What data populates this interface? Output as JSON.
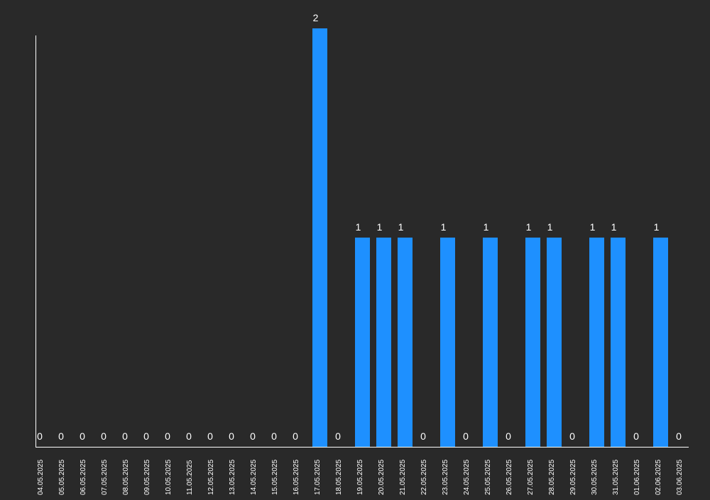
{
  "colors": {
    "background": "#292929",
    "bar": "#1e90ff",
    "axis": "#ffffff",
    "text": "#ffffff"
  },
  "chart_data": {
    "type": "bar",
    "categories": [
      "04.05.2025",
      "05.05.2025",
      "06.05.2025",
      "07.05.2025",
      "08.05.2025",
      "09.05.2025",
      "10.05.2025",
      "11.05.2025",
      "12.05.2025",
      "13.05.2025",
      "14.05.2025",
      "15.05.2025",
      "16.05.2025",
      "17.05.2025",
      "18.05.2025",
      "19.05.2025",
      "20.05.2025",
      "21.05.2025",
      "22.05.2025",
      "23.05.2025",
      "24.05.2025",
      "25.05.2025",
      "26.05.2025",
      "27.05.2025",
      "28.05.2025",
      "29.05.2025",
      "30.05.2025",
      "31.05.2025",
      "01.06.2025",
      "02.06.2025",
      "03.06.2025"
    ],
    "values": [
      0,
      0,
      0,
      0,
      0,
      0,
      0,
      0,
      0,
      0,
      0,
      0,
      0,
      2,
      0,
      1,
      1,
      1,
      0,
      1,
      0,
      1,
      0,
      1,
      1,
      0,
      1,
      1,
      0,
      1,
      0
    ],
    "ylim": [
      0,
      2
    ],
    "grid": false,
    "data_labels": true,
    "tick_label_rotation": "vertical"
  }
}
